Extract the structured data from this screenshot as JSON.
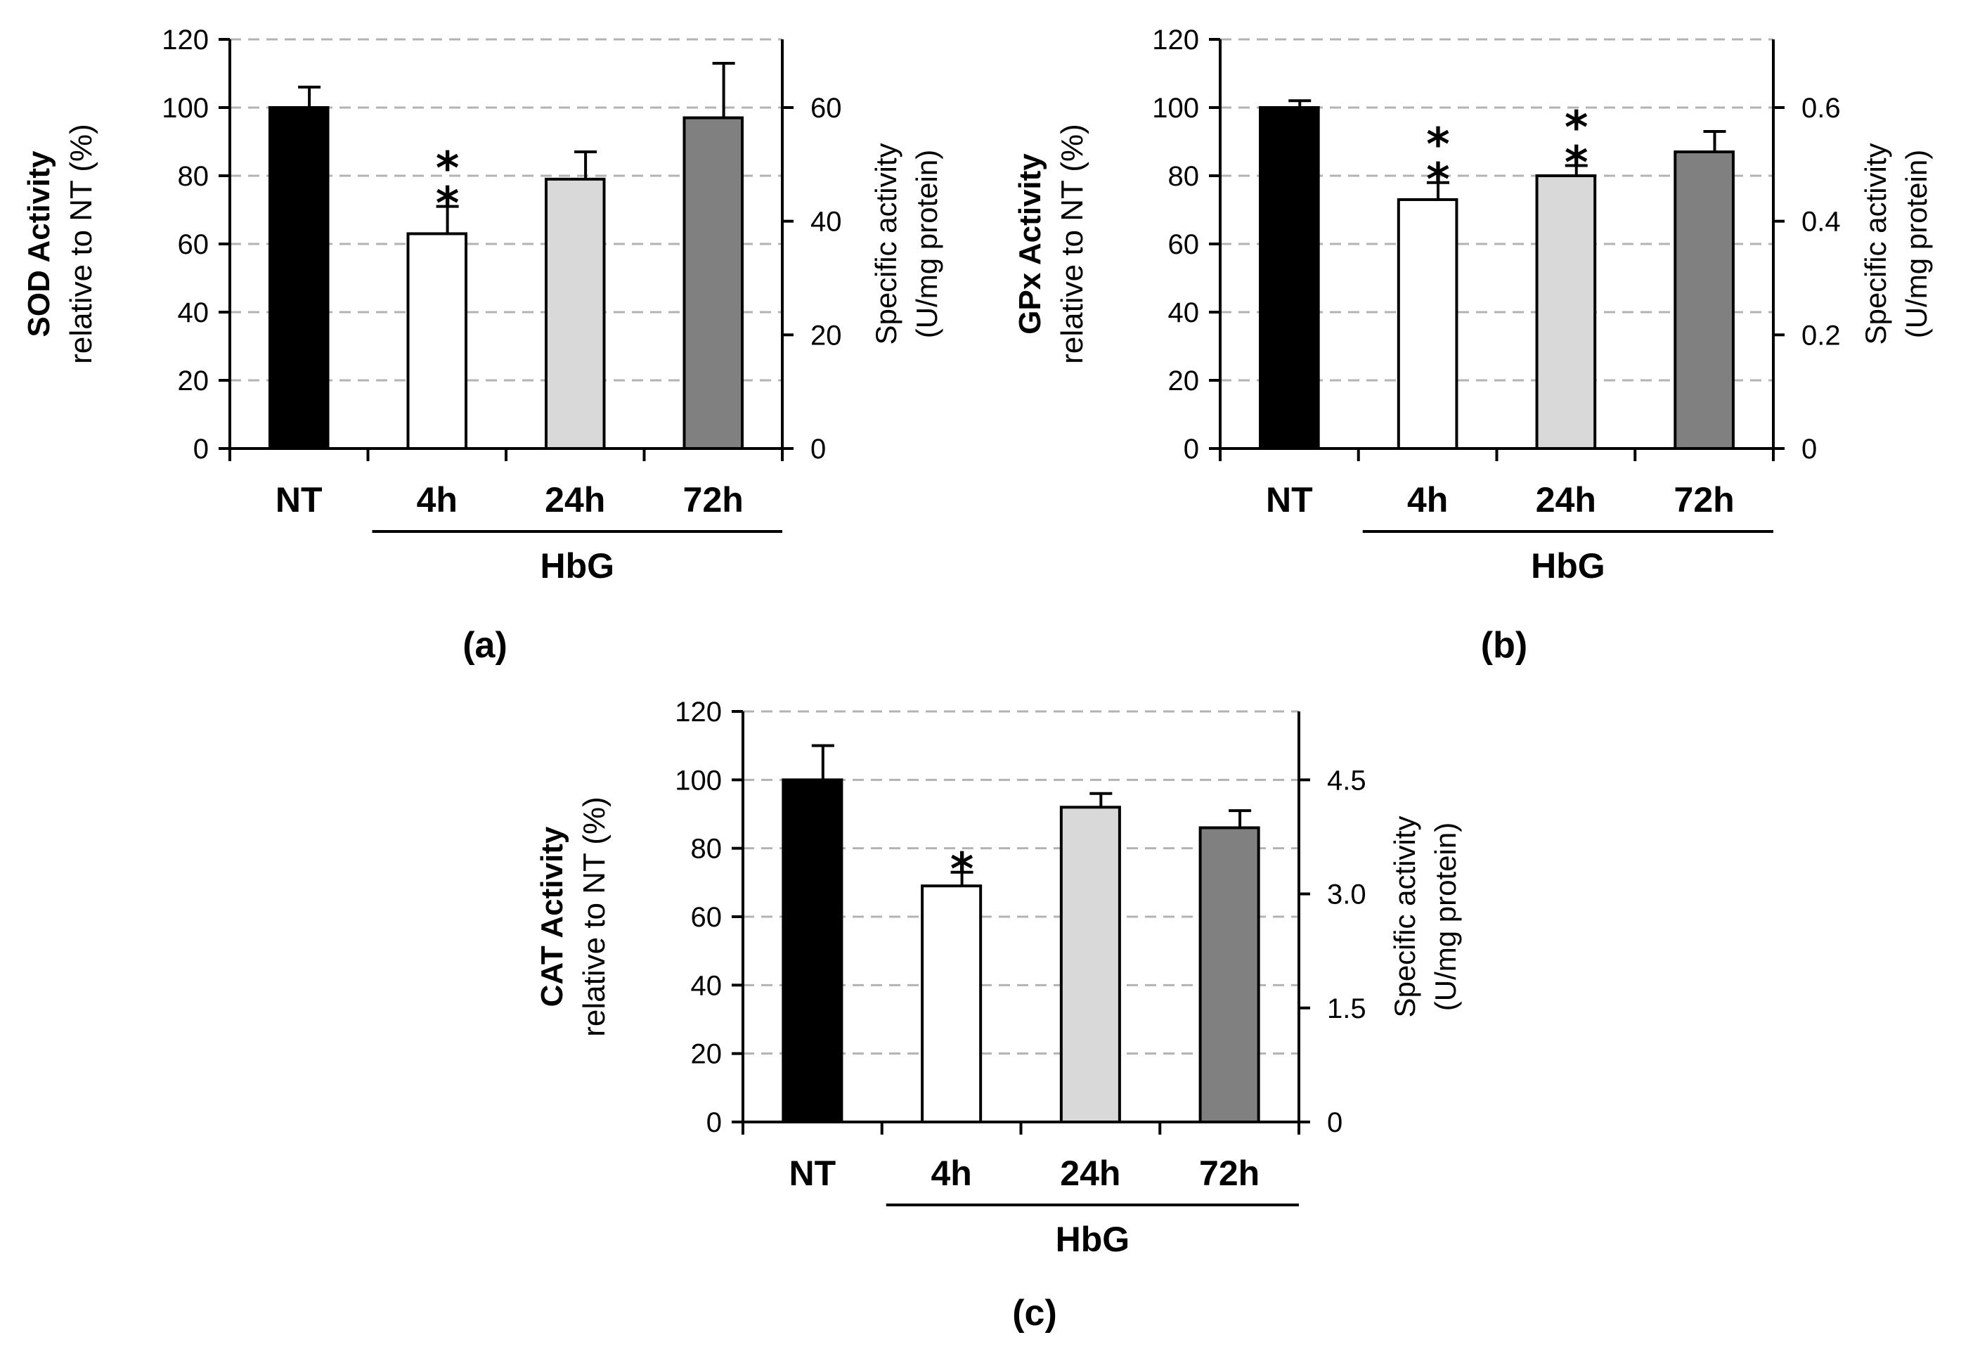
{
  "chart_data": [
    {
      "type": "bar",
      "panel_label": "(a)",
      "title": "",
      "categories": [
        "NT",
        "4h",
        "24h",
        "72h"
      ],
      "group_label": "HbG",
      "group_members": [
        "4h",
        "24h",
        "72h"
      ],
      "values": [
        100,
        63,
        79,
        97
      ],
      "errors": [
        6,
        8,
        8,
        16
      ],
      "bar_colors": [
        "#000000",
        "#ffffff",
        "#d9d9d9",
        "#808080"
      ],
      "significance": [
        "",
        "**",
        "",
        ""
      ],
      "ylabel_bold": "SOD Activity",
      "ylabel": "relative to NT (%)",
      "ylim": [
        0,
        120
      ],
      "yticks": [
        0,
        20,
        40,
        60,
        80,
        100,
        120
      ],
      "y2label_line1": "Specific activity",
      "y2label_line2": "(U/mg  protein)",
      "y2lim": [
        0,
        72
      ],
      "y2ticks": [
        0,
        20,
        40,
        60
      ],
      "y2tick_labels": [
        "0",
        "20",
        "40",
        "60"
      ],
      "grid": true
    },
    {
      "type": "bar",
      "panel_label": "(b)",
      "title": "",
      "categories": [
        "NT",
        "4h",
        "24h",
        "72h"
      ],
      "group_label": "HbG",
      "group_members": [
        "4h",
        "24h",
        "72h"
      ],
      "values": [
        100,
        73,
        80,
        87
      ],
      "errors": [
        2,
        5,
        3,
        6
      ],
      "bar_colors": [
        "#000000",
        "#ffffff",
        "#d9d9d9",
        "#808080"
      ],
      "significance": [
        "",
        "**",
        "**",
        ""
      ],
      "ylabel_bold": "GPx Activity",
      "ylabel": "relative to NT (%)",
      "ylim": [
        0,
        120
      ],
      "yticks": [
        0,
        20,
        40,
        60,
        80,
        100,
        120
      ],
      "y2label_line1": "Specific activity",
      "y2label_line2": "(U/mg  protein)",
      "y2lim": [
        0,
        0.72
      ],
      "y2ticks": [
        0,
        0.2,
        0.4,
        0.6
      ],
      "y2tick_labels": [
        "0",
        "0.2",
        "0.4",
        "0.6"
      ],
      "grid": true
    },
    {
      "type": "bar",
      "panel_label": "(c)",
      "title": "",
      "categories": [
        "NT",
        "4h",
        "24h",
        "72h"
      ],
      "group_label": "HbG",
      "group_members": [
        "4h",
        "24h",
        "72h"
      ],
      "values": [
        100,
        69,
        92,
        86
      ],
      "errors": [
        10,
        4,
        4,
        5
      ],
      "bar_colors": [
        "#000000",
        "#ffffff",
        "#d9d9d9",
        "#808080"
      ],
      "significance": [
        "",
        "*",
        "",
        ""
      ],
      "ylabel_bold": "CAT Activity",
      "ylabel": "relative to NT (%)",
      "ylim": [
        0,
        120
      ],
      "yticks": [
        0,
        20,
        40,
        60,
        80,
        100,
        120
      ],
      "y2label_line1": "Specific activity",
      "y2label_line2": "(U/mg  protein)",
      "y2lim": [
        0,
        5.4
      ],
      "y2ticks": [
        0,
        1.5,
        3.0,
        4.5
      ],
      "y2tick_labels": [
        "0",
        "1.5",
        "3.0",
        "4.5"
      ],
      "grid": true
    }
  ]
}
